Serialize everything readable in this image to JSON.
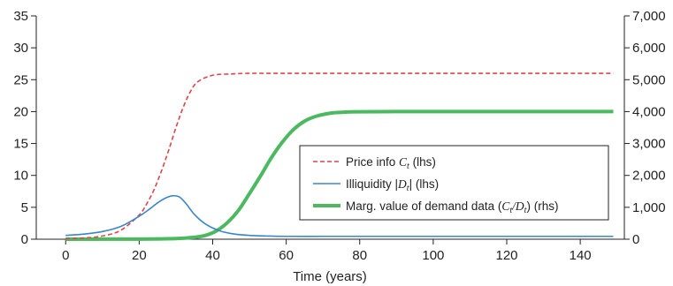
{
  "chart_data": {
    "type": "line",
    "title": "",
    "xlabel": "Time (years)",
    "ylabel_left": "",
    "ylabel_right": "",
    "xlim": [
      -8,
      152
    ],
    "x_ticks": [
      0,
      20,
      40,
      60,
      80,
      100,
      120,
      140
    ],
    "x_tick_labels": [
      "0",
      "20",
      "40",
      "60",
      "80",
      "100",
      "120",
      "140"
    ],
    "ylim_left": [
      0,
      35
    ],
    "y_left_ticks": [
      0,
      5,
      10,
      15,
      20,
      25,
      30,
      35
    ],
    "y_left_tick_labels": [
      "0",
      "5",
      "10",
      "15",
      "20",
      "25",
      "30",
      "35"
    ],
    "ylim_right": [
      0,
      7000
    ],
    "y_right_ticks": [
      0,
      1000,
      2000,
      3000,
      4000,
      5000,
      6000,
      7000
    ],
    "y_right_tick_labels": [
      "0",
      "1,000",
      "2,000",
      "3,000",
      "4,000",
      "5,000",
      "6,000",
      "7,000"
    ],
    "grid": false,
    "legend_position": "center-right",
    "series": [
      {
        "name": "Price info C_t (lhs)",
        "axis": "left",
        "color": "#d9474b",
        "style": "dashed",
        "x": [
          0,
          5,
          10,
          15,
          20,
          22,
          24,
          26,
          28,
          30,
          32,
          34,
          36,
          40,
          45,
          50,
          60,
          80,
          100,
          120,
          149
        ],
        "y": [
          0.1,
          0.2,
          0.5,
          1.4,
          3.8,
          5.5,
          7.7,
          10.6,
          13.9,
          17.5,
          20.7,
          23.2,
          24.7,
          25.7,
          25.9,
          26.0,
          26.0,
          26.0,
          26.0,
          26.0,
          26.0
        ]
      },
      {
        "name": "Illiquidity |D_t| (lhs)",
        "axis": "left",
        "color": "#3a86c8",
        "style": "solid",
        "x": [
          0,
          5,
          10,
          15,
          20,
          23,
          25,
          27,
          29,
          31,
          33,
          35,
          38,
          42,
          46,
          50,
          55,
          60,
          70,
          80,
          100,
          120,
          149
        ],
        "y": [
          0.6,
          0.8,
          1.2,
          2.0,
          3.6,
          4.8,
          5.7,
          6.4,
          6.8,
          6.6,
          5.4,
          3.9,
          2.4,
          1.3,
          0.8,
          0.6,
          0.5,
          0.45,
          0.45,
          0.45,
          0.45,
          0.45,
          0.45
        ]
      },
      {
        "name": "Marg. value of demand data (C_t/D_t) (rhs)",
        "axis": "right",
        "color": "#4cb860",
        "style": "solid-thick",
        "x": [
          0,
          20,
          30,
          35,
          38,
          41,
          44,
          47,
          50,
          53,
          56,
          59,
          62,
          65,
          68,
          72,
          76,
          80,
          90,
          100,
          120,
          149
        ],
        "y": [
          0,
          5,
          20,
          60,
          120,
          260,
          520,
          900,
          1430,
          1980,
          2560,
          3050,
          3440,
          3700,
          3850,
          3950,
          3985,
          3995,
          4000,
          4000,
          4000,
          4000
        ]
      }
    ]
  },
  "legend": {
    "items": [
      {
        "pre": "Price info ",
        "math": "C",
        "sub": "t",
        "post": " (lhs)"
      },
      {
        "pre": "Illiquidity |",
        "math": "D",
        "sub": "t",
        "post": "| (lhs)"
      },
      {
        "pre": "Marg. value of demand data (",
        "math": "C",
        "sub": "t",
        "mid": "/",
        "math2": "D",
        "sub2": "t",
        "post": ") (rhs)"
      }
    ]
  }
}
